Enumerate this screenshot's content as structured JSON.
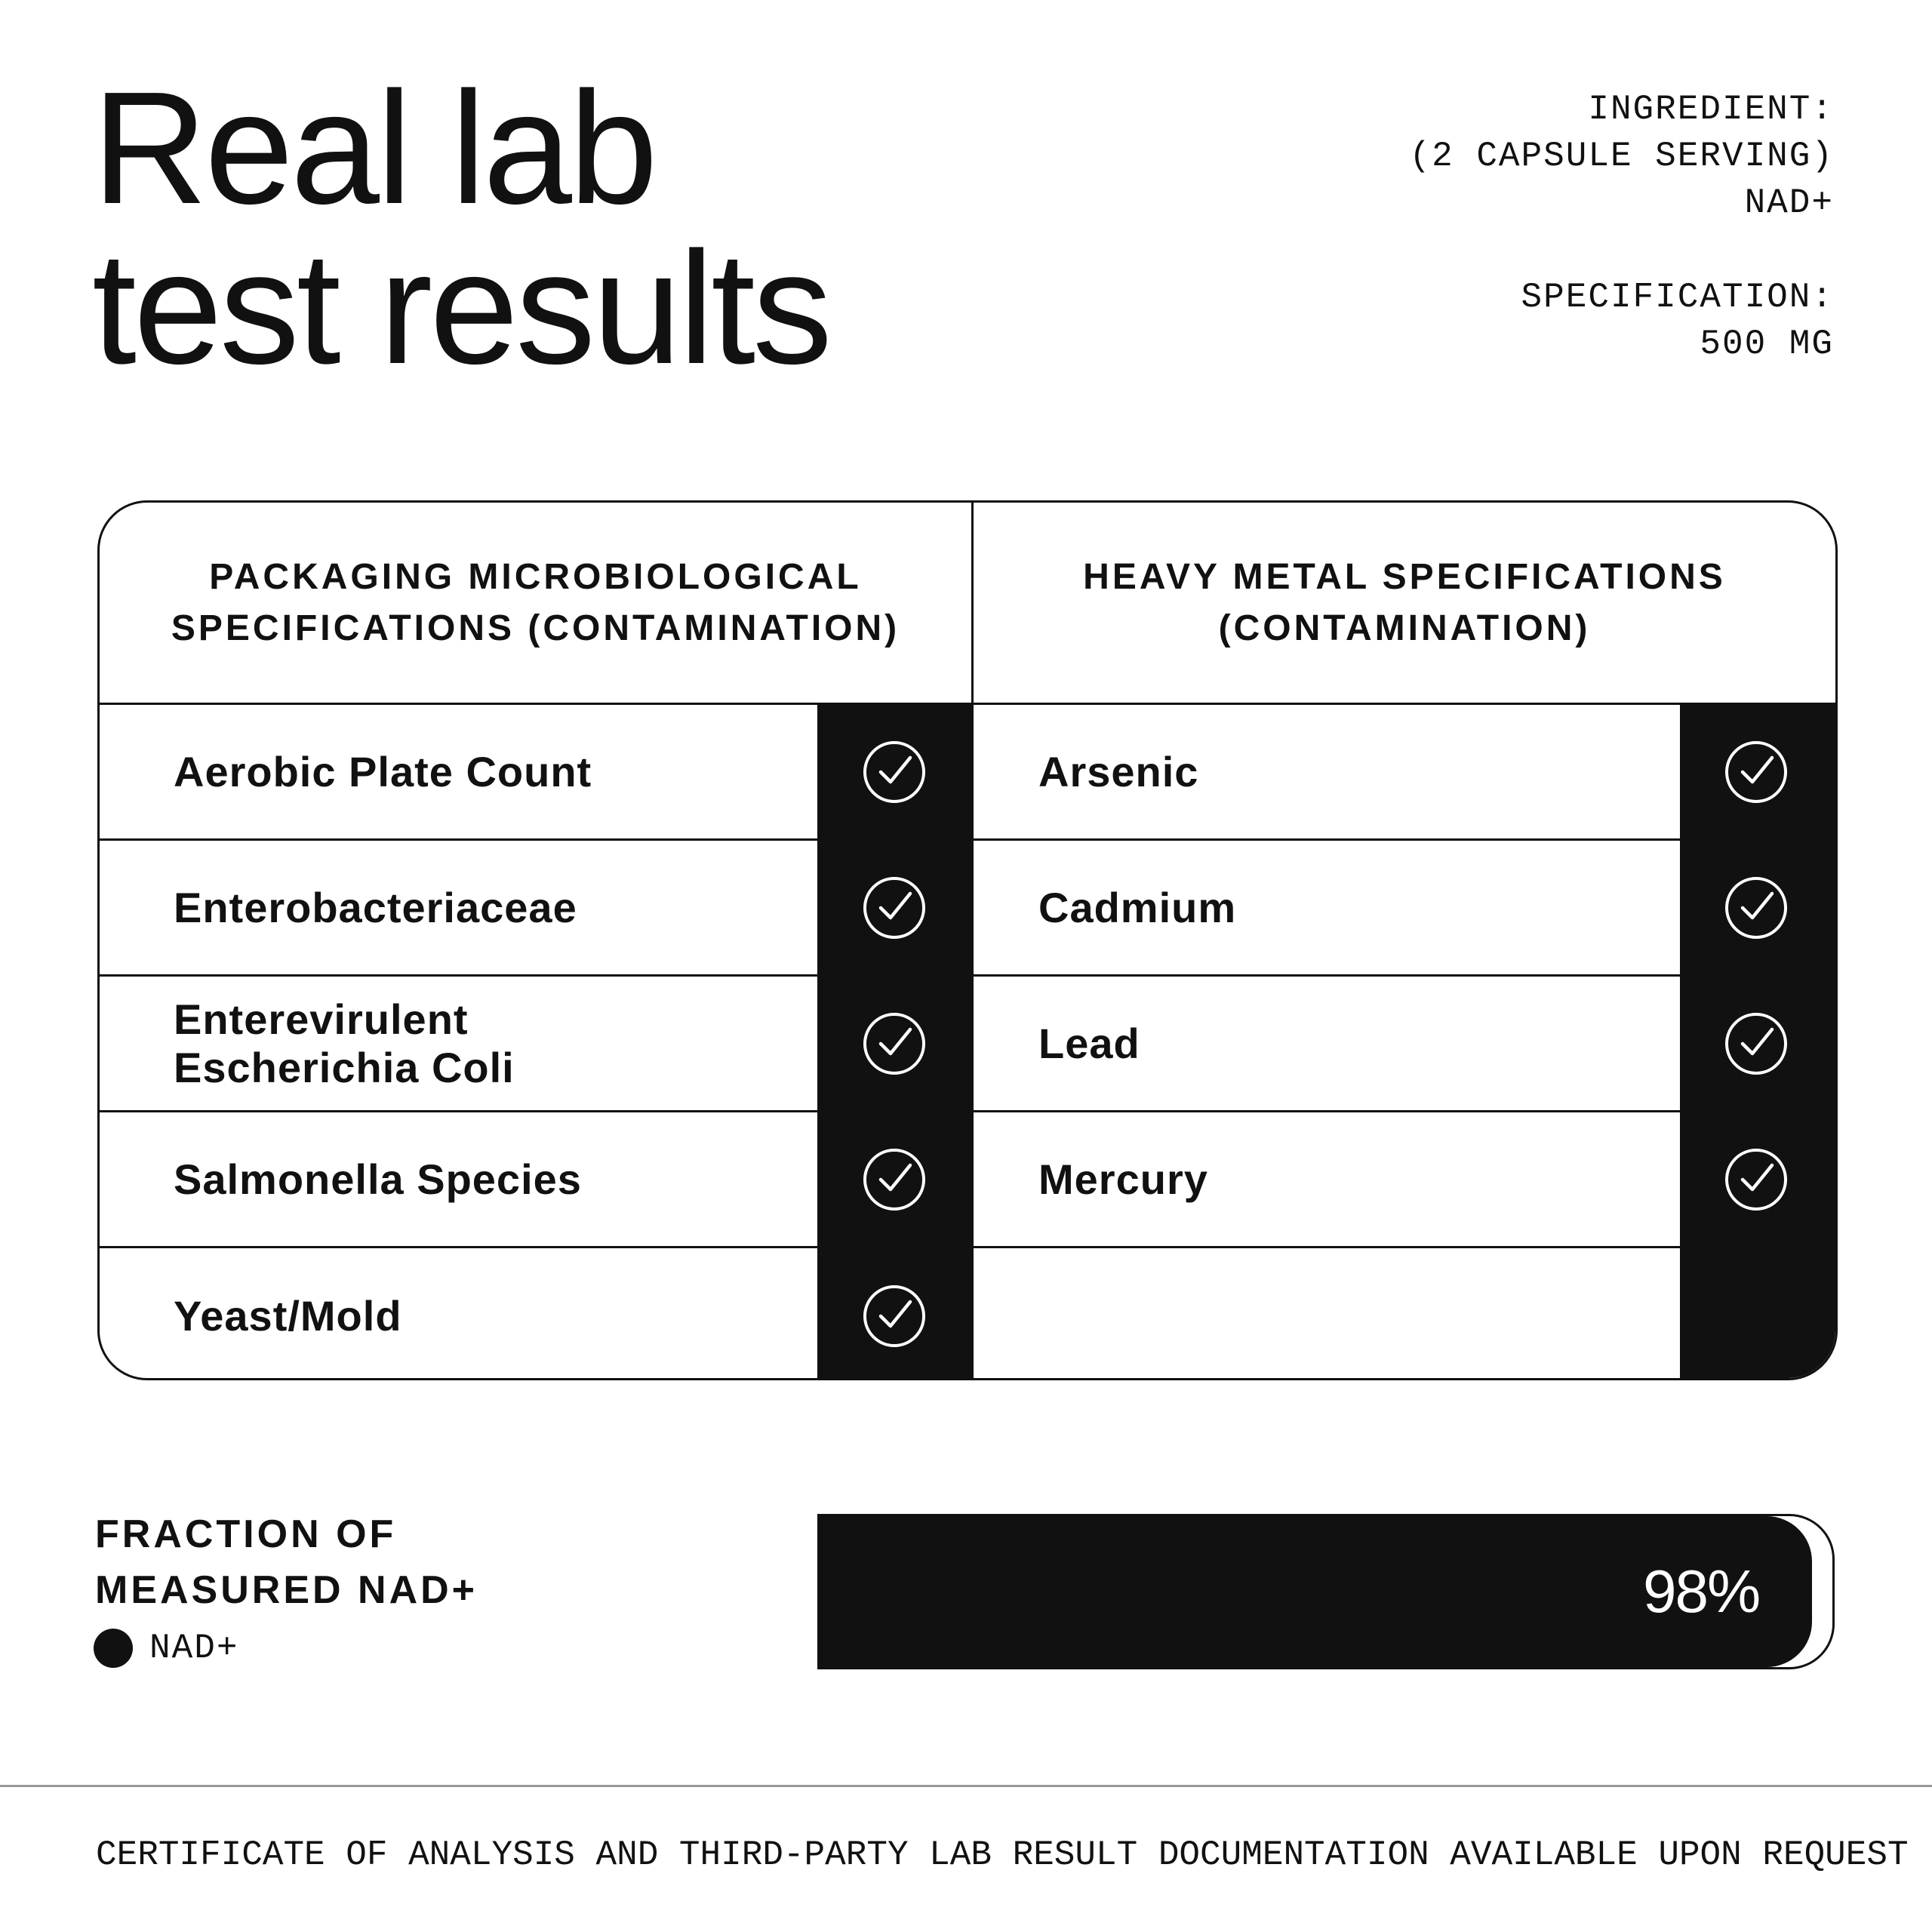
{
  "title": {
    "line1": "Real lab",
    "line2": "test results"
  },
  "spec": {
    "ingredient_label": "INGREDIENT:",
    "serving": "(2 CAPSULE SERVING)",
    "ingredient": "NAD+",
    "specification_label": "SPECIFICATION:",
    "specification": "500 MG"
  },
  "table": {
    "left": {
      "header": [
        "PACKAGING MICROBIOLOGICAL",
        "SPECIFICATIONS (CONTAMINATION)"
      ],
      "rows": [
        {
          "label": "Aerobic Plate Count",
          "status": "pass"
        },
        {
          "label": "Enterobacteriaceae",
          "status": "pass"
        },
        {
          "label": "Enterevirulent Escherichia Coli",
          "status": "pass"
        },
        {
          "label": "Salmonella Species",
          "status": "pass"
        },
        {
          "label": "Yeast/Mold",
          "status": "pass"
        }
      ]
    },
    "right": {
      "header": [
        "HEAVY METAL SPECIFICATIONS",
        "(CONTAMINATION)"
      ],
      "rows": [
        {
          "label": "Arsenic",
          "status": "pass"
        },
        {
          "label": "Cadmium",
          "status": "pass"
        },
        {
          "label": "Lead",
          "status": "pass"
        },
        {
          "label": "Mercury",
          "status": "pass"
        }
      ]
    },
    "icon": "check-circle-icon"
  },
  "fraction": {
    "label": [
      "FRACTION OF",
      "MEASURED NAD+"
    ],
    "legend": "NAD+",
    "value_label": "98%",
    "percent": 98
  },
  "footer": "CERTIFICATE OF ANALYSIS AND THIRD-PARTY LAB RESULT DOCUMENTATION AVAILABLE UPON REQUEST",
  "colors": {
    "ink": "#111111",
    "background": "#ffffff",
    "rule": "#999999"
  }
}
